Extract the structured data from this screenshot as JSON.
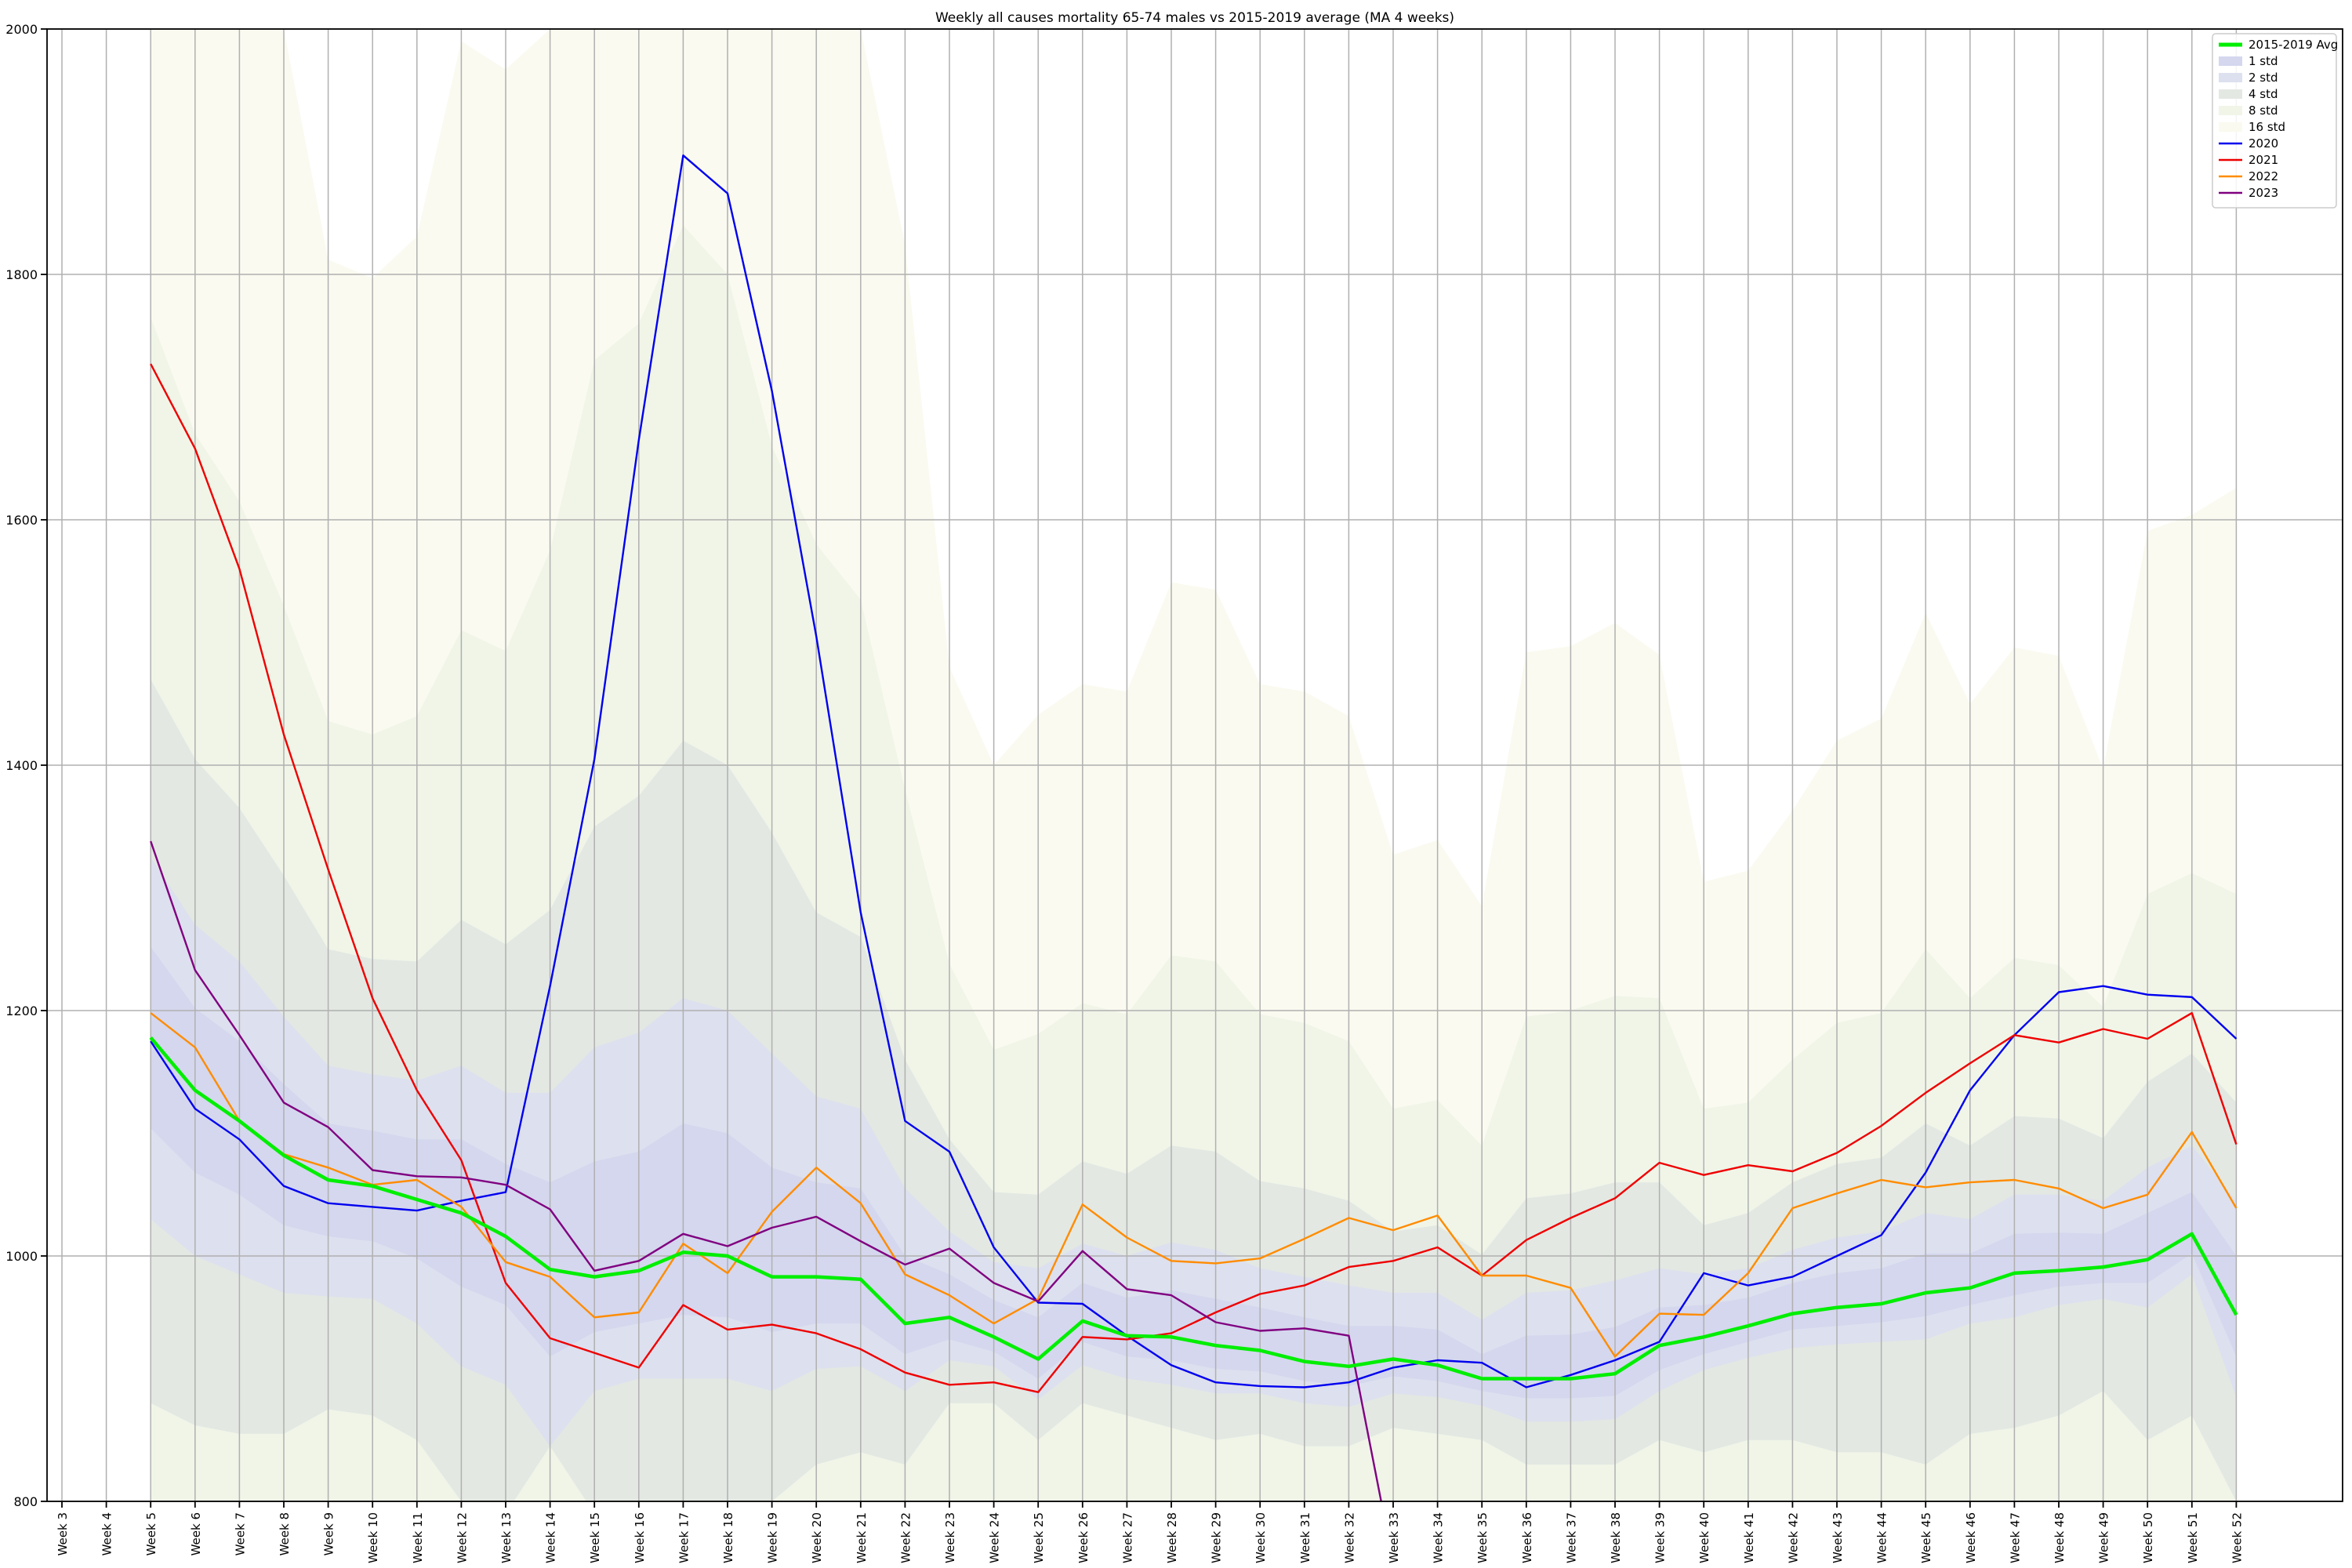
{
  "chart_data": {
    "type": "line",
    "title": "Weekly all causes mortality 65-74 males vs 2015-2019 average (MA 4 weeks)",
    "xlabel": "",
    "ylabel": "",
    "ylim": [
      800,
      2000
    ],
    "yticks": [
      800,
      1000,
      1200,
      1400,
      1600,
      1800,
      2000
    ],
    "grid": true,
    "legend_position": "top-right",
    "categories": [
      "Week 3",
      "Week 4",
      "Week 5",
      "Week 6",
      "Week 7",
      "Week 8",
      "Week 9",
      "Week 10",
      "Week 11",
      "Week 12",
      "Week 13",
      "Week 14",
      "Week 15",
      "Week 16",
      "Week 17",
      "Week 18",
      "Week 19",
      "Week 20",
      "Week 21",
      "Week 22",
      "Week 23",
      "Week 24",
      "Week 25",
      "Week 26",
      "Week 27",
      "Week 28",
      "Week 29",
      "Week 30",
      "Week 31",
      "Week 32",
      "Week 33",
      "Week 34",
      "Week 35",
      "Week 36",
      "Week 37",
      "Week 38",
      "Week 39",
      "Week 40",
      "Week 41",
      "Week 42",
      "Week 43",
      "Week 44",
      "Week 45",
      "Week 46",
      "Week 47",
      "Week 48",
      "Week 49",
      "Week 50",
      "Week 51",
      "Week 52"
    ],
    "average": {
      "name": "2015-2019 Avg",
      "color": "#00ee00",
      "values": [
        null,
        null,
        1178,
        1135,
        1110,
        1082,
        1062,
        1057,
        1046,
        1035,
        1016,
        989,
        983,
        988,
        1003,
        1000,
        983,
        983,
        981,
        945,
        950,
        934,
        916,
        947,
        935,
        934,
        927,
        923,
        914,
        910,
        916,
        911,
        900,
        900,
        900,
        904,
        927,
        934,
        943,
        953,
        958,
        961,
        970,
        974,
        986,
        988,
        991,
        997,
        1018,
        952
      ]
    },
    "bands": [
      {
        "name": "16 std",
        "color": "#fafaf0",
        "lower": [
          null,
          null,
          0,
          0,
          0,
          0,
          0,
          0,
          0,
          0,
          0,
          0,
          0,
          0,
          0,
          0,
          0,
          0,
          0,
          0,
          0,
          0,
          0,
          0,
          0,
          0,
          0,
          0,
          0,
          0,
          0,
          0,
          0,
          0,
          0,
          0,
          0,
          0,
          0,
          0,
          0,
          0,
          0,
          0,
          0,
          0,
          0,
          0,
          0,
          0
        ],
        "upper": [
          null,
          null,
          2000,
          2000,
          2000,
          2000,
          1812,
          1797,
          1831,
          1990,
          1967,
          2000,
          2000,
          2000,
          2000,
          2000,
          2000,
          2000,
          2000,
          1824,
          1480,
          1400,
          1441,
          1466,
          1460,
          1549,
          1543,
          1466,
          1460,
          1440,
          1327,
          1339,
          1285,
          1492,
          1497,
          1516,
          1490,
          1305,
          1314,
          1363,
          1420,
          1438,
          1524,
          1450,
          1496,
          1489,
          1397,
          1591,
          1604,
          1626
        ]
      },
      {
        "name": "8 std",
        "color": "#f0f5e8",
        "lower": [
          null,
          null,
          380,
          460,
          525,
          525,
          545,
          590,
          560,
          240,
          280,
          250,
          220,
          230,
          200,
          240,
          230,
          300,
          320,
          210,
          400,
          440,
          340,
          330,
          300,
          250,
          220,
          250,
          240,
          290,
          440,
          395,
          430,
          420,
          400,
          350,
          290,
          420,
          410,
          400,
          440,
          430,
          380,
          470,
          490,
          500,
          560,
          540,
          580,
          470
        ],
        "upper": [
          null,
          null,
          1765,
          1670,
          1615,
          1530,
          1436,
          1425,
          1440,
          1510,
          1493,
          1575,
          1730,
          1760,
          1840,
          1800,
          1660,
          1580,
          1535,
          1380,
          1238,
          1168,
          1181,
          1206,
          1197,
          1245,
          1240,
          1197,
          1190,
          1175,
          1120,
          1127,
          1090,
          1195,
          1200,
          1212,
          1210,
          1120,
          1125,
          1160,
          1190,
          1198,
          1250,
          1210,
          1243,
          1237,
          1203,
          1295,
          1312,
          1295
        ]
      },
      {
        "name": "4 std",
        "color": "#e3e8e3",
        "lower": [
          null,
          null,
          880,
          862,
          855,
          855,
          875,
          870,
          850,
          800,
          790,
          845,
          790,
          800,
          760,
          780,
          800,
          830,
          840,
          830,
          880,
          880,
          850,
          880,
          870,
          860,
          850,
          855,
          845,
          845,
          860,
          855,
          850,
          830,
          830,
          830,
          850,
          840,
          850,
          850,
          840,
          840,
          830,
          855,
          860,
          870,
          890,
          850,
          870,
          800
        ],
        "upper": [
          null,
          null,
          1470,
          1405,
          1365,
          1310,
          1250,
          1242,
          1240,
          1274,
          1254,
          1282,
          1350,
          1375,
          1420,
          1400,
          1345,
          1280,
          1260,
          1160,
          1095,
          1052,
          1050,
          1077,
          1067,
          1090,
          1085,
          1061,
          1055,
          1045,
          1020,
          1025,
          1001,
          1047,
          1051,
          1060,
          1060,
          1025,
          1035,
          1060,
          1075,
          1080,
          1108,
          1090,
          1114,
          1112,
          1096,
          1142,
          1165,
          1125
        ]
      },
      {
        "name": "2 std",
        "color": "#dde0ee",
        "lower": [
          null,
          null,
          1030,
          1000,
          985,
          970,
          967,
          965,
          945,
          910,
          895,
          845,
          890,
          900,
          900,
          900,
          890,
          908,
          910,
          890,
          915,
          910,
          883,
          911,
          900,
          895,
          888,
          888,
          880,
          877,
          888,
          885,
          878,
          865,
          865,
          867,
          890,
          907,
          917,
          925,
          928,
          930,
          932,
          945,
          950,
          960,
          965,
          958,
          985,
          885
        ],
        "upper": [
          null,
          null,
          1325,
          1270,
          1240,
          1195,
          1155,
          1148,
          1143,
          1155,
          1133,
          1133,
          1170,
          1182,
          1210,
          1200,
          1165,
          1130,
          1120,
          1055,
          1020,
          995,
          990,
          1010,
          1000,
          1011,
          1005,
          990,
          983,
          976,
          970,
          970,
          948,
          970,
          972,
          980,
          990,
          985,
          990,
          1005,
          1015,
          1020,
          1035,
          1030,
          1050,
          1050,
          1045,
          1072,
          1090,
          1045
        ]
      },
      {
        "name": "1 std",
        "color": "#d4d7ee",
        "lower": [
          null,
          null,
          1104,
          1068,
          1050,
          1025,
          1016,
          1012,
          998,
          975,
          960,
          918,
          938,
          945,
          952,
          950,
          938,
          945,
          945,
          920,
          932,
          922,
          900,
          930,
          918,
          915,
          908,
          906,
          898,
          894,
          902,
          898,
          890,
          884,
          884,
          886,
          907,
          920,
          930,
          940,
          943,
          946,
          951,
          960,
          968,
          975,
          978,
          978,
          1002,
          918
        ],
        "upper": [
          null,
          null,
          1252,
          1202,
          1175,
          1140,
          1108,
          1102,
          1095,
          1095,
          1075,
          1060,
          1077,
          1085,
          1108,
          1100,
          1072,
          1060,
          1055,
          1000,
          985,
          964,
          950,
          978,
          966,
          972,
          965,
          958,
          950,
          943,
          943,
          940,
          920,
          935,
          936,
          942,
          958,
          960,
          966,
          978,
          986,
          990,
          1002,
          1002,
          1018,
          1019,
          1018,
          1035,
          1052,
          1000
        ]
      }
    ],
    "series": [
      {
        "name": "2020",
        "color": "#0000ee",
        "values": [
          null,
          null,
          1175,
          1120,
          1095,
          1057,
          1043,
          1040,
          1037,
          1045,
          1052,
          1220,
          1405,
          1665,
          1897,
          1866,
          1705,
          1505,
          1280,
          1110,
          1085,
          1007,
          962,
          961,
          935,
          911,
          897,
          894,
          893,
          897,
          909,
          915,
          913,
          893,
          903,
          915,
          930,
          986,
          976,
          983,
          1000,
          1017,
          1068,
          1135,
          1180,
          1215,
          1220,
          1213,
          1211,
          1177
        ]
      },
      {
        "name": "2021",
        "color": "#ee0000",
        "values": [
          null,
          null,
          1727,
          1658,
          1560,
          1425,
          1315,
          1210,
          1135,
          1078,
          978,
          933,
          921,
          909,
          960,
          940,
          944,
          937,
          924,
          905,
          895,
          897,
          889,
          934,
          932,
          937,
          954,
          969,
          976,
          991,
          996,
          1007,
          984,
          1013,
          1031,
          1047,
          1076,
          1066,
          1074,
          1069,
          1084,
          1106,
          1133,
          1157,
          1180,
          1174,
          1185,
          1177,
          1198,
          1091
        ]
      },
      {
        "name": "2022",
        "color": "#ff8c00",
        "values": [
          null,
          null,
          1198,
          1170,
          1110,
          1083,
          1072,
          1058,
          1062,
          1040,
          995,
          983,
          950,
          954,
          1010,
          986,
          1036,
          1072,
          1043,
          985,
          968,
          945,
          965,
          1042,
          1015,
          996,
          994,
          998,
          1014,
          1031,
          1021,
          1033,
          984,
          984,
          974,
          918,
          953,
          952,
          986,
          1039,
          1051,
          1062,
          1056,
          1060,
          1062,
          1055,
          1039,
          1050,
          1101,
          1039
        ]
      },
      {
        "name": "2023",
        "color": "#800080",
        "values": [
          null,
          null,
          1338,
          1233,
          1180,
          1125,
          1105,
          1070,
          1065,
          1064,
          1058,
          1038,
          988,
          996,
          1018,
          1008,
          1023,
          1032,
          1012,
          993,
          1006,
          978,
          963,
          1004,
          973,
          968,
          946,
          939,
          941,
          935,
          750,
          null,
          null,
          null,
          null,
          null,
          null,
          null,
          null,
          null,
          null,
          null,
          null,
          null,
          null,
          null,
          null,
          null,
          null,
          null
        ]
      }
    ]
  }
}
